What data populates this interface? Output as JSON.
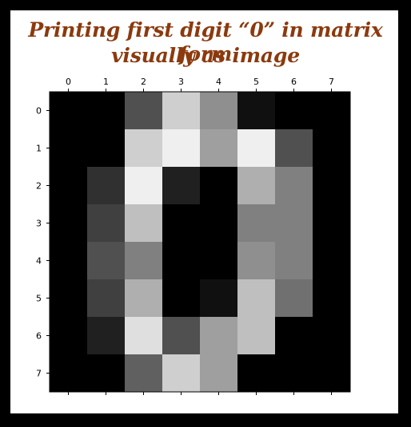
{
  "title_line1": "Printing first digit “0” in matrix form",
  "title_line2": "visually as image",
  "chart_data": {
    "type": "heatmap",
    "colormap": "gray",
    "value_range": [
      0,
      16
    ],
    "x_ticks": [
      "0",
      "1",
      "2",
      "3",
      "4",
      "5",
      "6",
      "7"
    ],
    "y_ticks": [
      "0",
      "1",
      "2",
      "3",
      "4",
      "5",
      "6",
      "7"
    ],
    "matrix": [
      [
        0,
        0,
        5,
        13,
        9,
        1,
        0,
        0
      ],
      [
        0,
        0,
        13,
        15,
        10,
        15,
        5,
        0
      ],
      [
        0,
        3,
        15,
        2,
        0,
        11,
        8,
        0
      ],
      [
        0,
        4,
        12,
        0,
        0,
        8,
        8,
        0
      ],
      [
        0,
        5,
        8,
        0,
        0,
        9,
        8,
        0
      ],
      [
        0,
        4,
        11,
        0,
        1,
        12,
        7,
        0
      ],
      [
        0,
        2,
        14,
        5,
        10,
        12,
        0,
        0
      ],
      [
        0,
        0,
        6,
        13,
        10,
        0,
        0,
        0
      ]
    ],
    "xtick_position": "top"
  },
  "colors": {
    "title": "#8b3a0e",
    "border": "#000000",
    "background": "#ffffff"
  }
}
